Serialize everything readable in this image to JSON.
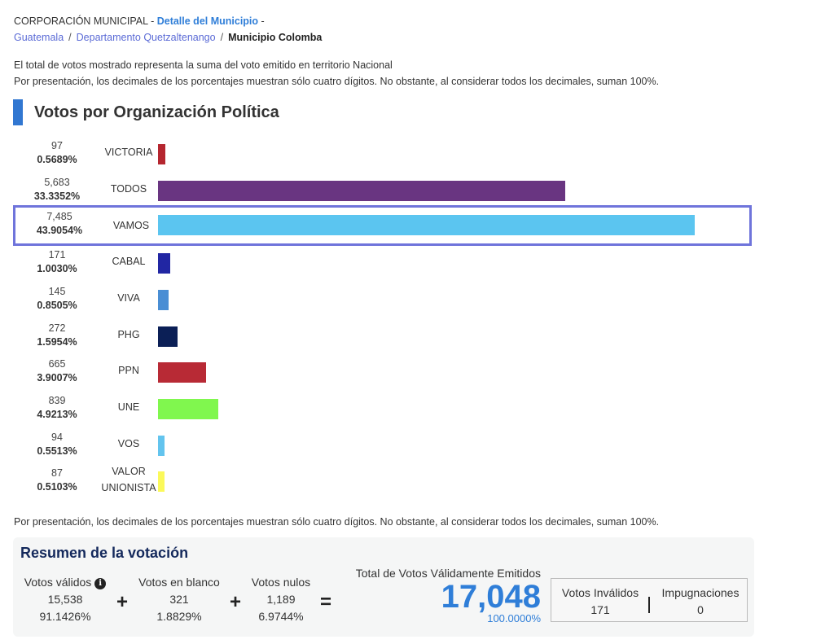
{
  "breadcrumb": {
    "corporation": "CORPORACIÓN MUNICIPAL",
    "dash1": " - ",
    "detail_link": "Detalle del Municipio",
    "dash2": " -",
    "country": "Guatemala",
    "separator": "/",
    "department": "Departamento Quetzaltenango",
    "municipality": "Municipio Colomba"
  },
  "notes": {
    "line1": "El total de votos mostrado representa la suma del voto emitido en territorio Nacional",
    "line2": "Por presentación, los decimales de los porcentajes muestran sólo cuatro dígitos. No obstante, al considerar todos los decimales, suman 100%.",
    "footer": "Por presentación, los decimales de los porcentajes muestran sólo cuatro dígitos. No obstante, al considerar todos los decimales, suman 100%."
  },
  "section_title": "Votos por Organización Política",
  "chart_data": {
    "type": "bar",
    "orientation": "horizontal",
    "title": "Votos por Organización Política",
    "xlabel": "",
    "ylabel": "",
    "grid": false,
    "highlighted": "VAMOS",
    "categories": [
      "VICTORIA",
      "TODOS",
      "VAMOS",
      "CABAL",
      "VIVA",
      "PHG",
      "PPN",
      "UNE",
      "VOS",
      "VALOR UNIONISTA"
    ],
    "values": [
      97,
      5683,
      7485,
      171,
      145,
      272,
      665,
      839,
      94,
      87
    ],
    "value_labels": [
      "97",
      "5,683",
      "7,485",
      "171",
      "145",
      "272",
      "665",
      "839",
      "94",
      "87"
    ],
    "percentages": [
      0.5689,
      33.3352,
      43.9054,
      1.003,
      0.8505,
      1.5954,
      3.9007,
      4.9213,
      0.5513,
      0.5103
    ],
    "percentage_labels": [
      "0.5689%",
      "33.3352%",
      "43.9054%",
      "1.0030%",
      "0.8505%",
      "1.5954%",
      "3.9007%",
      "4.9213%",
      "0.5513%",
      "0.5103%"
    ],
    "colors": [
      "#b5262f",
      "#693581",
      "#5bc5f0",
      "#2126a3",
      "#4a8ed4",
      "#0b1f56",
      "#b82a35",
      "#80f74e",
      "#63c4ee",
      "#fbf95a"
    ],
    "xlim": [
      0,
      100
    ]
  },
  "summary": {
    "title": "Resumen de la votación",
    "valid": {
      "label": "Votos válidos",
      "value": "15,538",
      "pct": "91.1426%"
    },
    "blank": {
      "label": "Votos en blanco",
      "value": "321",
      "pct": "1.8829%"
    },
    "null": {
      "label": "Votos nulos",
      "value": "1,189",
      "pct": "6.9744%"
    },
    "plus": "+",
    "equals": "=",
    "info_icon": "i",
    "total": {
      "label": "Total de Votos Válidamente Emitidos",
      "value": "17,048",
      "pct": "100.0000%"
    },
    "invalid": {
      "label": "Votos Inválidos",
      "value": "171"
    },
    "challenges": {
      "label": "Impugnaciones",
      "value": "0"
    }
  }
}
